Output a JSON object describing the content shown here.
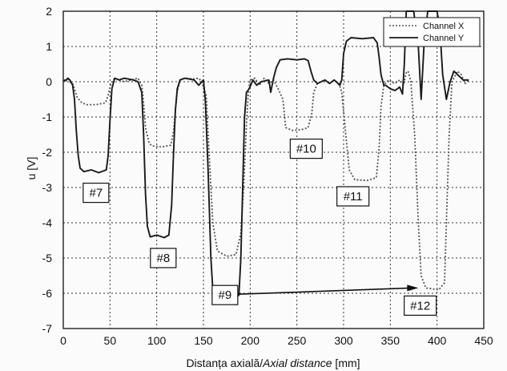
{
  "chart_data": {
    "type": "line",
    "title": "",
    "xlabel": "Distanța axială/",
    "xlabel_italic": "Axial distance",
    "xlabel_unit": " [mm]",
    "ylabel": "u [V]",
    "xlim": [
      0,
      450
    ],
    "ylim": [
      -7,
      2
    ],
    "xticks": [
      "0",
      "50",
      "100",
      "150",
      "200",
      "250",
      "300",
      "350",
      "400",
      "450"
    ],
    "yticks": [
      "2",
      "1",
      "0",
      "-1",
      "-2",
      "-3",
      "-4",
      "-5",
      "-6",
      "-7"
    ],
    "grid": true,
    "legend_position": "top-right",
    "series": [
      {
        "name": "Channel X",
        "style": "dotted",
        "color": "#555555",
        "points": [
          [
            -5,
            0
          ],
          [
            3,
            0.02
          ],
          [
            5,
            0.08
          ],
          [
            7,
            0
          ],
          [
            10,
            -0.05
          ],
          [
            12,
            -0.2
          ],
          [
            15,
            -0.45
          ],
          [
            20,
            -0.6
          ],
          [
            25,
            -0.65
          ],
          [
            35,
            -0.65
          ],
          [
            45,
            -0.6
          ],
          [
            48,
            -0.4
          ],
          [
            51,
            -0.05
          ],
          [
            55,
            0.1
          ],
          [
            60,
            0.05
          ],
          [
            65,
            0
          ],
          [
            80,
            0.1
          ],
          [
            84,
            -0.1
          ],
          [
            86,
            -0.6
          ],
          [
            88,
            -1.3
          ],
          [
            92,
            -1.75
          ],
          [
            95,
            -1.82
          ],
          [
            105,
            -1.85
          ],
          [
            115,
            -1.8
          ],
          [
            118,
            -1.4
          ],
          [
            120,
            -0.8
          ],
          [
            122,
            -0.3
          ],
          [
            125,
            0.05
          ],
          [
            130,
            0.1
          ],
          [
            140,
            0.08
          ],
          [
            145,
            0.1
          ],
          [
            148,
            0
          ],
          [
            153,
            -0.4
          ],
          [
            156,
            -2
          ],
          [
            160,
            -4
          ],
          [
            165,
            -4.8
          ],
          [
            175,
            -4.95
          ],
          [
            185,
            -4.9
          ],
          [
            190,
            -4.3
          ],
          [
            193,
            -3
          ],
          [
            196,
            -1.2
          ],
          [
            198,
            -0.3
          ],
          [
            200,
            0.05
          ],
          [
            205,
            0.1
          ],
          [
            210,
            -0.1
          ],
          [
            215,
            0.1
          ],
          [
            220,
            -0.05
          ],
          [
            225,
            0.05
          ],
          [
            230,
            -0.2
          ],
          [
            235,
            -0.5
          ],
          [
            238,
            -1.3
          ],
          [
            245,
            -1.38
          ],
          [
            255,
            -1.36
          ],
          [
            262,
            -1.3
          ],
          [
            266,
            -0.9
          ],
          [
            268,
            -0.3
          ],
          [
            272,
            -0.05
          ],
          [
            280,
            0.05
          ],
          [
            285,
            -0.05
          ],
          [
            290,
            0.05
          ],
          [
            295,
            -0.05
          ],
          [
            298,
            -0.3
          ],
          [
            302,
            -1.4
          ],
          [
            306,
            -2.5
          ],
          [
            312,
            -2.78
          ],
          [
            325,
            -2.8
          ],
          [
            335,
            -2.72
          ],
          [
            338,
            -1.9
          ],
          [
            340,
            -0.7
          ],
          [
            343,
            -0.1
          ],
          [
            348,
            0.05
          ],
          [
            355,
            -0.05
          ],
          [
            360,
            0.05
          ],
          [
            364,
            -0.1
          ],
          [
            367,
            0.25
          ],
          [
            369,
            0.3
          ],
          [
            372,
            0
          ],
          [
            376,
            -1.5
          ],
          [
            380,
            -4
          ],
          [
            383,
            -5.5
          ],
          [
            388,
            -5.85
          ],
          [
            402,
            -5.9
          ],
          [
            408,
            -5.7
          ],
          [
            410,
            -4
          ],
          [
            413,
            -1.5
          ],
          [
            416,
            0
          ],
          [
            422,
            0.3
          ],
          [
            426,
            0.2
          ],
          [
            430,
            -0.05
          ],
          [
            434,
            0.05
          ]
        ]
      },
      {
        "name": "Channel Y",
        "style": "solid",
        "color": "#1a1a1a",
        "points": [
          [
            -5,
            0
          ],
          [
            3,
            0.05
          ],
          [
            5,
            0.1
          ],
          [
            7,
            0.05
          ],
          [
            10,
            -0.1
          ],
          [
            12,
            -0.5
          ],
          [
            14,
            -1.4
          ],
          [
            16,
            -2.1
          ],
          [
            18,
            -2.45
          ],
          [
            22,
            -2.55
          ],
          [
            30,
            -2.5
          ],
          [
            38,
            -2.58
          ],
          [
            46,
            -2.5
          ],
          [
            48,
            -2.1
          ],
          [
            50,
            -1.1
          ],
          [
            52,
            -0.2
          ],
          [
            55,
            0.1
          ],
          [
            60,
            0.05
          ],
          [
            65,
            0.1
          ],
          [
            75,
            0.05
          ],
          [
            80,
            0
          ],
          [
            84,
            -0.3
          ],
          [
            86,
            -1.5
          ],
          [
            88,
            -3.2
          ],
          [
            90,
            -4.1
          ],
          [
            93,
            -4.4
          ],
          [
            100,
            -4.35
          ],
          [
            108,
            -4.42
          ],
          [
            113,
            -4.35
          ],
          [
            116,
            -3.5
          ],
          [
            118,
            -2
          ],
          [
            120,
            -0.8
          ],
          [
            122,
            -0.2
          ],
          [
            125,
            0.05
          ],
          [
            130,
            0.1
          ],
          [
            140,
            0.05
          ],
          [
            145,
            -0.1
          ],
          [
            150,
            0.05
          ],
          [
            152,
            -0.5
          ],
          [
            155,
            -2.5
          ],
          [
            158,
            -5
          ],
          [
            160,
            -5.9
          ],
          [
            163,
            -6.15
          ],
          [
            170,
            -6.2
          ],
          [
            175,
            -6.1
          ],
          [
            182,
            -6.2
          ],
          [
            188,
            -6.05
          ],
          [
            190,
            -5
          ],
          [
            192,
            -3
          ],
          [
            194,
            -1
          ],
          [
            196,
            -0.3
          ],
          [
            199,
            -0.2
          ],
          [
            203,
            0.05
          ],
          [
            207,
            -0.1
          ],
          [
            212,
            0
          ],
          [
            220,
            0.05
          ],
          [
            222,
            -0.3
          ],
          [
            225,
            0.1
          ],
          [
            228,
            0.4
          ],
          [
            232,
            0.62
          ],
          [
            240,
            0.65
          ],
          [
            250,
            0.62
          ],
          [
            258,
            0.65
          ],
          [
            262,
            0.6
          ],
          [
            265,
            0.3
          ],
          [
            268,
            0.05
          ],
          [
            272,
            -0.05
          ],
          [
            280,
            0.05
          ],
          [
            285,
            -0.05
          ],
          [
            290,
            0.05
          ],
          [
            296,
            -0.1
          ],
          [
            298,
            0.05
          ],
          [
            300,
            0.8
          ],
          [
            303,
            1.15
          ],
          [
            308,
            1.25
          ],
          [
            320,
            1.22
          ],
          [
            332,
            1.25
          ],
          [
            336,
            1.1
          ],
          [
            338,
            0.7
          ],
          [
            340,
            0.2
          ],
          [
            343,
            -0.1
          ],
          [
            345,
            -0.1
          ],
          [
            350,
            -0.2
          ],
          [
            355,
            -0.25
          ],
          [
            360,
            -0.15
          ],
          [
            363,
            -0.35
          ],
          [
            365,
            0.5
          ],
          [
            367,
            2
          ],
          [
            375,
            2
          ],
          [
            380,
            1
          ],
          [
            383,
            -0.5
          ],
          [
            386,
            1
          ],
          [
            390,
            2
          ],
          [
            400,
            2
          ],
          [
            403,
            1.5
          ],
          [
            406,
            0.2
          ],
          [
            410,
            -0.5
          ],
          [
            414,
            0
          ],
          [
            418,
            0.3
          ],
          [
            422,
            0.2
          ],
          [
            428,
            0.05
          ],
          [
            434,
            0.05
          ]
        ]
      }
    ],
    "annotations": [
      {
        "label": "#7",
        "x": 35,
        "y": -3.15,
        "arrow_to": null
      },
      {
        "label": "#8",
        "x": 107,
        "y": -5.0,
        "arrow_to": null
      },
      {
        "label": "#9",
        "x": 173,
        "y": -6.05,
        "arrow_to": [
          380,
          -5.85
        ]
      },
      {
        "label": "#10",
        "x": 260,
        "y": -1.9,
        "arrow_to": null
      },
      {
        "label": "#11",
        "x": 310,
        "y": -3.25,
        "arrow_to": null
      },
      {
        "label": "#12",
        "x": 382,
        "y": -6.35,
        "arrow_to": null
      }
    ]
  }
}
